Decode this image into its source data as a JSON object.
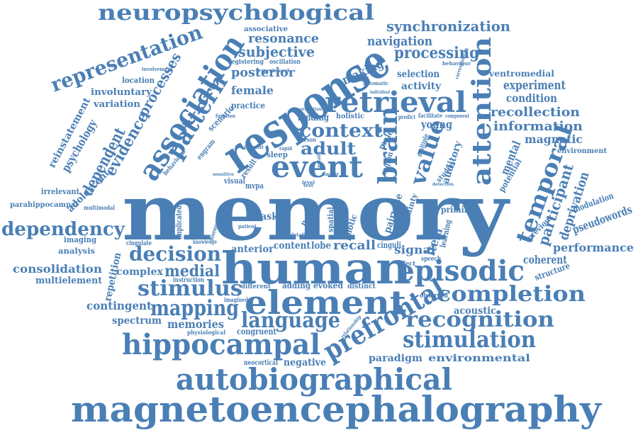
{
  "color": "#4a7fb5",
  "words": [
    "memory",
    "human",
    "response",
    "element",
    "episodic",
    "magnetoencephalography",
    "autobiographical",
    "hippocampal",
    "prefrontal",
    "retrieval",
    "event",
    "association",
    "attention",
    "brain",
    "temporal",
    "neuropsychological",
    "representation",
    "stimulation",
    "recognition",
    "completion",
    "stimulus",
    "language",
    "mapping",
    "decision",
    "context",
    "pattern",
    "value",
    "adult",
    "dependency",
    "processing",
    "synchronization",
    "subjective",
    "resonance",
    "navigation",
    "posterior",
    "processes",
    "evidence",
    "dependent",
    "experiment",
    "condition",
    "recollection",
    "information",
    "magnetic",
    "participant",
    "deprivation",
    "performance",
    "pseudowords",
    "modulation",
    "signal",
    "item",
    "recall",
    "anterior",
    "content",
    "lobe",
    "medial",
    "complex",
    "consolidation",
    "multielement",
    "repetition",
    "contingent",
    "spectrum",
    "memories",
    "congruent",
    "negative",
    "paradigm",
    "environmental",
    "acoustic",
    "coherent",
    "structure",
    "priming",
    "learning",
    "mental",
    "potential",
    "ventromedial",
    "environment",
    "young",
    "auditory",
    "making",
    "selection",
    "activity",
    "female",
    "practice",
    "scenario",
    "psychology",
    "reinstatement",
    "adolescent",
    "irrelevant",
    "parahippocampal",
    "imaging",
    "analysis",
    "cingulate",
    "implicated",
    "task",
    "novel",
    "spatial",
    "pairwise",
    "certainty",
    "photic",
    "binding",
    "holistic",
    "sleep",
    "visual",
    "mvpa",
    "result",
    "location",
    "involuntary",
    "variation",
    "previous",
    "associative",
    "oscillation",
    "registering",
    "engram",
    "behavioral",
    "multimodal",
    "knowledge",
    "adding",
    "evoked",
    "distinct",
    "different",
    "instruction",
    "imagined",
    "physiological",
    "neocortical",
    "cinguli",
    "speech",
    "observed",
    "relationship",
    "correlation",
    "behaviour",
    "individual",
    "predict",
    "facilitate",
    "component",
    "corresponding",
    "involvement",
    "automatic",
    "rapid",
    "function",
    "experienced",
    "present",
    "detection",
    "level",
    "person",
    "effect",
    "male",
    "region",
    "studies",
    "multiple",
    "certain",
    "mnemonic",
    "patient",
    "detail",
    "factor",
    "test",
    "sensitive"
  ]
}
